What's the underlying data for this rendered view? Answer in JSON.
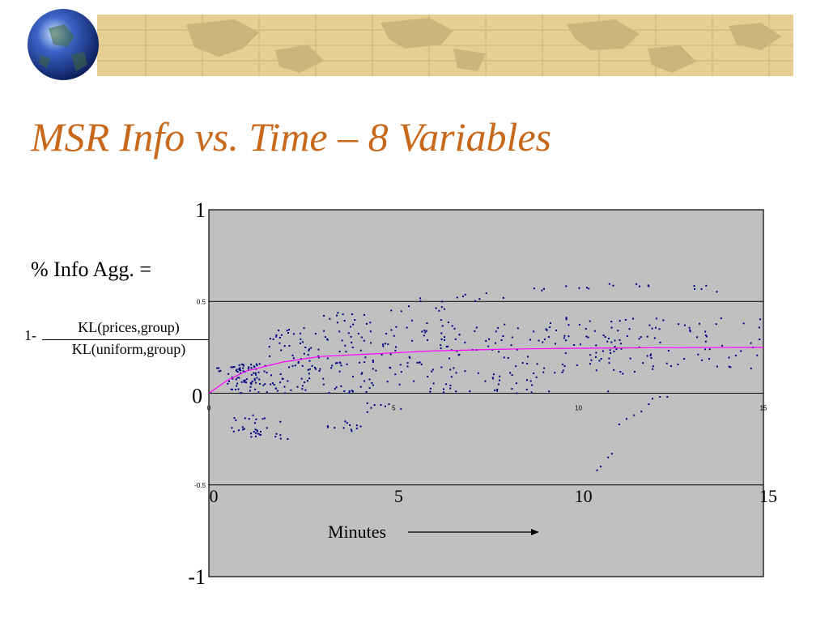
{
  "slide": {
    "title": "MSR Info vs. Time – 8 Variables",
    "formula_label": "% Info Agg. =",
    "formula_prefix": "1-",
    "formula_numerator": "KL(prices,group)",
    "formula_denominator": "KL(uniform,group)"
  },
  "colors": {
    "title": "#c8681a",
    "banner_bg": "#e6cf92",
    "plot_bg": "#c0c0c0",
    "points": "#000080",
    "trend": "#ff00ff"
  },
  "chart_data": {
    "type": "scatter",
    "xlim": [
      0,
      15
    ],
    "ylim": [
      -1,
      1
    ],
    "outer_y_ticks": [
      "1",
      "0",
      "-1"
    ],
    "outer_x_ticks": [
      "0",
      "5",
      "10",
      "15"
    ],
    "inner_y_ticks": [
      "0.5",
      "-0.5"
    ],
    "inner_x_ticks": [
      "0",
      "5",
      "10",
      "15"
    ],
    "gridlines_y": [
      0.5,
      0,
      -0.5
    ],
    "xlabel": "Minutes",
    "trend_points": [
      [
        0,
        0
      ],
      [
        0.5,
        0.07
      ],
      [
        1,
        0.12
      ],
      [
        2,
        0.17
      ],
      [
        3,
        0.2
      ],
      [
        4,
        0.21
      ],
      [
        5,
        0.22
      ],
      [
        6,
        0.23
      ],
      [
        8,
        0.24
      ],
      [
        10,
        0.245
      ],
      [
        12,
        0.248
      ],
      [
        15,
        0.25
      ]
    ],
    "bands": [
      {
        "x0": 0.5,
        "x1": 1.6,
        "ymin": -0.25,
        "ymax": -0.12,
        "n": 28
      },
      {
        "x0": 1.6,
        "x1": 2.4,
        "ymin": -0.25,
        "ymax": -0.15,
        "n": 6
      },
      {
        "x0": 3.2,
        "x1": 4.2,
        "ymin": -0.23,
        "ymax": -0.15,
        "n": 12
      },
      {
        "x0": 4.2,
        "x1": 5.2,
        "ymin": -0.12,
        "ymax": -0.05,
        "n": 8
      },
      {
        "x0": 0.5,
        "x1": 1.6,
        "ymin": 0.0,
        "ymax": 0.16,
        "n": 70
      },
      {
        "x0": 1.6,
        "x1": 3.0,
        "ymin": 0.0,
        "ymax": 0.3,
        "n": 60
      },
      {
        "x0": 1.8,
        "x1": 3.4,
        "ymin": 0.3,
        "ymax": 0.36,
        "n": 14
      },
      {
        "x0": 3.0,
        "x1": 4.5,
        "ymin": 0.0,
        "ymax": 0.35,
        "n": 55
      },
      {
        "x0": 3.0,
        "x1": 4.5,
        "ymin": 0.36,
        "ymax": 0.44,
        "n": 14
      },
      {
        "x0": 4.5,
        "x1": 6.5,
        "ymin": 0.0,
        "ymax": 0.4,
        "n": 60
      },
      {
        "x0": 4.8,
        "x1": 6.5,
        "ymin": 0.44,
        "ymax": 0.52,
        "n": 10
      },
      {
        "x0": 6.5,
        "x1": 9.0,
        "ymin": 0.0,
        "ymax": 0.4,
        "n": 70
      },
      {
        "x0": 6.5,
        "x1": 8.0,
        "ymin": 0.5,
        "ymax": 0.55,
        "n": 7
      },
      {
        "x0": 9.0,
        "x1": 12.2,
        "ymin": 0.1,
        "ymax": 0.42,
        "n": 90
      },
      {
        "x0": 8.6,
        "x1": 10.4,
        "ymin": 0.56,
        "ymax": 0.59,
        "n": 7
      },
      {
        "x0": 10.8,
        "x1": 12.0,
        "ymin": 0.57,
        "ymax": 0.6,
        "n": 6
      },
      {
        "x0": 12.2,
        "x1": 15.0,
        "ymin": 0.12,
        "ymax": 0.42,
        "n": 40
      },
      {
        "x0": 13.0,
        "x1": 13.8,
        "ymin": 0.55,
        "ymax": 0.59,
        "n": 5
      },
      {
        "x0": 0.2,
        "x1": 1.0,
        "ymin": 0.1,
        "ymax": 0.17,
        "n": 10
      }
    ],
    "points": [
      [
        10.5,
        -0.42
      ],
      [
        10.6,
        -0.4
      ],
      [
        10.8,
        -0.35
      ],
      [
        10.9,
        -0.33
      ],
      [
        11.1,
        -0.17
      ],
      [
        11.3,
        -0.14
      ],
      [
        11.5,
        -0.12
      ],
      [
        11.7,
        -0.1
      ],
      [
        11.9,
        -0.06
      ],
      [
        12.0,
        -0.03
      ],
      [
        12.2,
        -0.02
      ],
      [
        12.4,
        -0.02
      ],
      [
        7.8,
        0.02
      ],
      [
        8.6,
        0.02
      ],
      [
        9.2,
        0.01
      ],
      [
        10.8,
        0.01
      ]
    ]
  }
}
